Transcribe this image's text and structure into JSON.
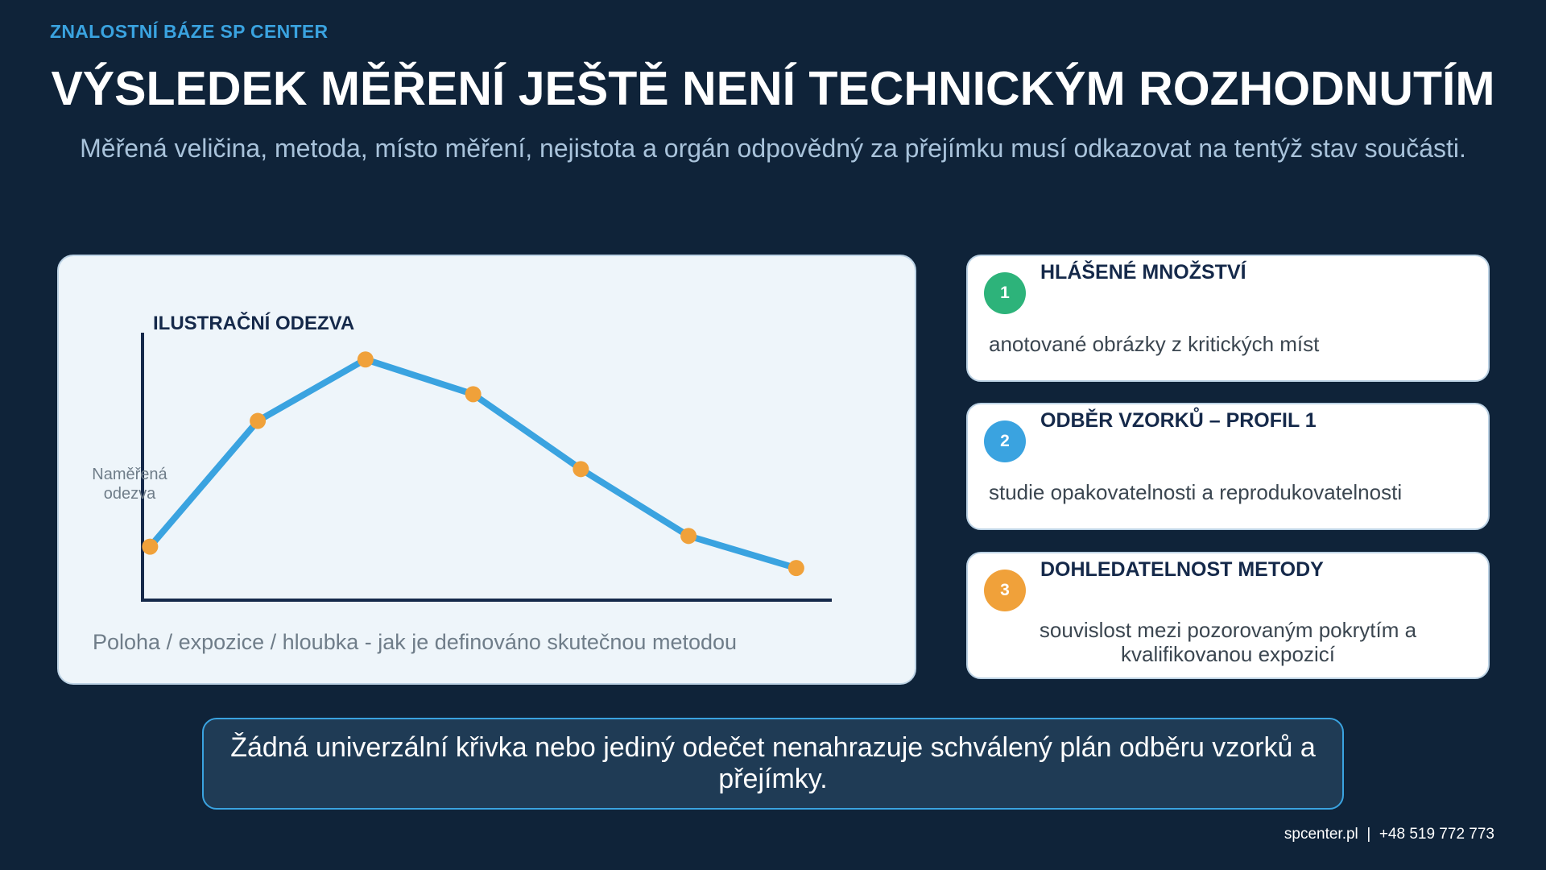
{
  "header": {
    "brand": "ZNALOSTNÍ BÁZE SP CENTER",
    "title": "VÝSLEDEK MĚŘENÍ JEŠTĚ NENÍ TECHNICKÝM ROZHODNUTÍM",
    "subtitle": "Měřená veličina, metoda, místo měření, nejistota a orgán odpovědný za přejímku musí odkazovat na tentýž stav součásti."
  },
  "chart": {
    "caption": "Poloha / expozice / hloubka - jak je definováno skutečnou metodou"
  },
  "chart_data": {
    "type": "line",
    "title": "ILUSTRAČNÍ ODEZVA",
    "xlabel": "",
    "ylabel_lines": [
      "Naměřená",
      "odezva"
    ],
    "x": [
      1,
      2,
      3,
      4,
      5,
      6,
      7
    ],
    "series": [
      {
        "values": [
          20,
          67,
          90,
          77,
          49,
          24,
          12
        ]
      }
    ],
    "xlim": [
      0.93,
      7.33
    ],
    "ylim": [
      0,
      100
    ],
    "grid": false,
    "line_color": "#3aa3e0",
    "marker_color": "#f0a13a",
    "axis_color": "#15294a"
  },
  "cards": [
    {
      "number": "1",
      "title": "HLÁŠENÉ MNOŽSTVÍ",
      "text": "anotované obrázky z kritických míst",
      "color": "#2db37a"
    },
    {
      "number": "2",
      "title": "ODBĚR VZORKŮ – PROFIL 1",
      "text": "studie opakovatelnosti a reprodukovatelnosti",
      "color": "#3aa3e0"
    },
    {
      "number": "3",
      "title": "DOHLEDATELNOST METODY",
      "text": "souvislost mezi pozorovaným pokrytím a kvalifikovanou expozicí",
      "color": "#f0a13a"
    }
  ],
  "footer": {
    "note": "Žádná univerzální křivka nebo jediný odečet nenahrazuje schválený plán odběru vzorků a přejímky.",
    "contact": "spcenter.pl  |  +48 519 772 773"
  }
}
